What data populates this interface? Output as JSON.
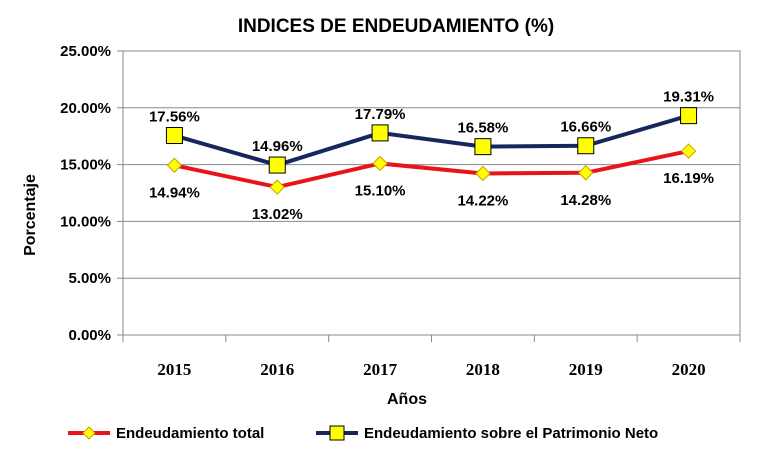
{
  "chart_data": {
    "type": "line",
    "title": "INDICES DE ENDEUDAMIENTO (%)",
    "xlabel": "Años",
    "ylabel": "Porcentaje",
    "categories": [
      "2015",
      "2016",
      "2017",
      "2018",
      "2019",
      "2020"
    ],
    "ylim": [
      0,
      25
    ],
    "yticks": [
      "0.00%",
      "5.00%",
      "10.00%",
      "15.00%",
      "20.00%",
      "25.00%"
    ],
    "grid": true,
    "legend_position": "bottom",
    "series": [
      {
        "name": "Endeudamiento total",
        "values": [
          14.94,
          13.02,
          15.1,
          14.22,
          14.28,
          16.19
        ],
        "labels": [
          "14.94%",
          "13.02%",
          "15.10%",
          "14.22%",
          "14.28%",
          "16.19%"
        ],
        "color": "#e8141b",
        "marker": "diamond",
        "marker_fill": "#ffff00",
        "label_position": "below"
      },
      {
        "name": "Endeudamiento sobre el Patrimonio Neto",
        "values": [
          17.56,
          14.96,
          17.79,
          16.58,
          16.66,
          19.31
        ],
        "labels": [
          "17.56%",
          "14.96%",
          "17.79%",
          "16.58%",
          "16.66%",
          "19.31%"
        ],
        "color": "#16275e",
        "marker": "square",
        "marker_fill": "#ffff00",
        "label_position": "above"
      }
    ]
  }
}
